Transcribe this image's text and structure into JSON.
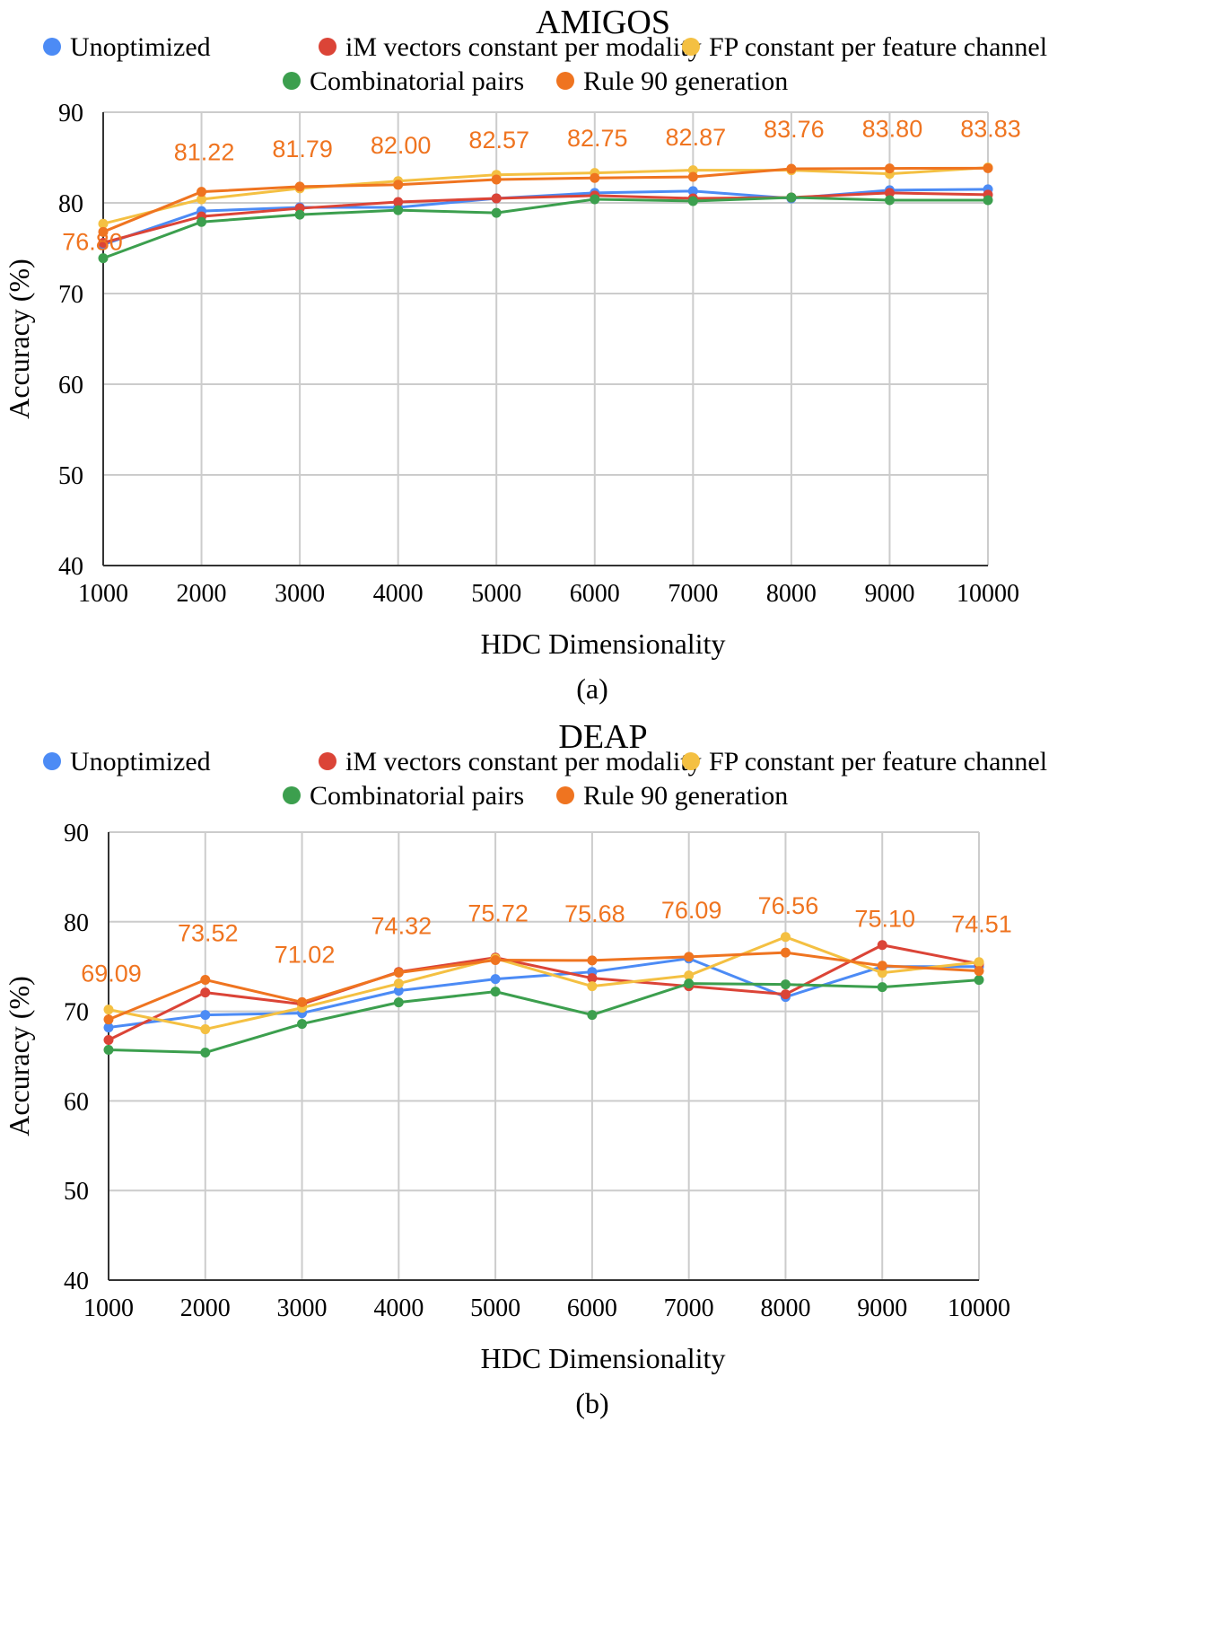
{
  "colors": {
    "unoptimized": "#4c8bf5",
    "im_vectors": "#db4437",
    "fp_constant": "#f4c042",
    "combinatorial": "#3c9f4e",
    "rule90": "#ef7420"
  },
  "chart_data": [
    {
      "type": "line",
      "title": "AMIGOS",
      "caption": "(a)",
      "xlabel": "HDC Dimensionality",
      "ylabel": "Accuracy (%)",
      "ylim": [
        40,
        90
      ],
      "yticks": [
        "40",
        "50",
        "60",
        "70",
        "80",
        "90"
      ],
      "grid": true,
      "legend_position": "top",
      "categories": [
        "1000",
        "2000",
        "3000",
        "4000",
        "5000",
        "6000",
        "7000",
        "8000",
        "9000",
        "10000"
      ],
      "series": [
        {
          "name": "Unoptimized",
          "color_key": "unoptimized",
          "values": [
            75.4,
            79.1,
            79.5,
            79.5,
            80.5,
            81.1,
            81.3,
            80.5,
            81.4,
            81.5
          ]
        },
        {
          "name": "iM vectors constant per modality",
          "color_key": "im_vectors",
          "values": [
            75.6,
            78.5,
            79.4,
            80.1,
            80.5,
            80.8,
            80.5,
            80.6,
            81.1,
            80.9
          ]
        },
        {
          "name": "FP constant per feature channel",
          "color_key": "fp_constant",
          "values": [
            77.7,
            80.4,
            81.6,
            82.4,
            83.1,
            83.3,
            83.6,
            83.6,
            83.2,
            83.9
          ]
        },
        {
          "name": "Combinatorial pairs",
          "color_key": "combinatorial",
          "values": [
            73.9,
            77.9,
            78.7,
            79.2,
            78.9,
            80.4,
            80.2,
            80.6,
            80.3,
            80.3
          ]
        },
        {
          "name": "Rule 90 generation",
          "color_key": "rule90",
          "values": [
            76.8,
            81.22,
            81.79,
            82.0,
            82.57,
            82.75,
            82.87,
            83.76,
            83.8,
            83.83
          ],
          "data_labels": [
            "76.80",
            "81.22",
            "81.79",
            "82.00",
            "82.57",
            "82.75",
            "82.87",
            "83.76",
            "83.80",
            "83.83"
          ]
        }
      ]
    },
    {
      "type": "line",
      "title": "DEAP",
      "caption": "(b)",
      "xlabel": "HDC Dimensionality",
      "ylabel": "Accuracy (%)",
      "ylim": [
        40,
        90
      ],
      "yticks": [
        "40",
        "50",
        "60",
        "70",
        "80",
        "90"
      ],
      "grid": true,
      "legend_position": "top",
      "categories": [
        "1000",
        "2000",
        "3000",
        "4000",
        "5000",
        "6000",
        "7000",
        "8000",
        "9000",
        "10000"
      ],
      "series": [
        {
          "name": "Unoptimized",
          "color_key": "unoptimized",
          "values": [
            68.2,
            69.6,
            69.8,
            72.3,
            73.6,
            74.4,
            75.9,
            71.6,
            75.0,
            75.0
          ]
        },
        {
          "name": "iM vectors constant per modality",
          "color_key": "im_vectors",
          "values": [
            66.8,
            72.1,
            70.8,
            74.4,
            76.0,
            73.7,
            72.8,
            71.9,
            77.4,
            75.3
          ]
        },
        {
          "name": "FP constant per feature channel",
          "color_key": "fp_constant",
          "values": [
            70.2,
            68.0,
            70.4,
            73.1,
            75.9,
            72.8,
            74.0,
            78.3,
            74.3,
            75.5
          ]
        },
        {
          "name": "Combinatorial pairs",
          "color_key": "combinatorial",
          "values": [
            65.7,
            65.4,
            68.6,
            71.0,
            72.2,
            69.6,
            73.1,
            73.0,
            72.7,
            73.5
          ]
        },
        {
          "name": "Rule 90 generation",
          "color_key": "rule90",
          "values": [
            69.09,
            73.52,
            71.02,
            74.32,
            75.72,
            75.68,
            76.09,
            76.56,
            75.1,
            74.51
          ],
          "data_labels": [
            "69.09",
            "73.52",
            "71.02",
            "74.32",
            "75.72",
            "75.68",
            "76.09",
            "76.56",
            "75.10",
            "74.51"
          ]
        }
      ]
    }
  ]
}
